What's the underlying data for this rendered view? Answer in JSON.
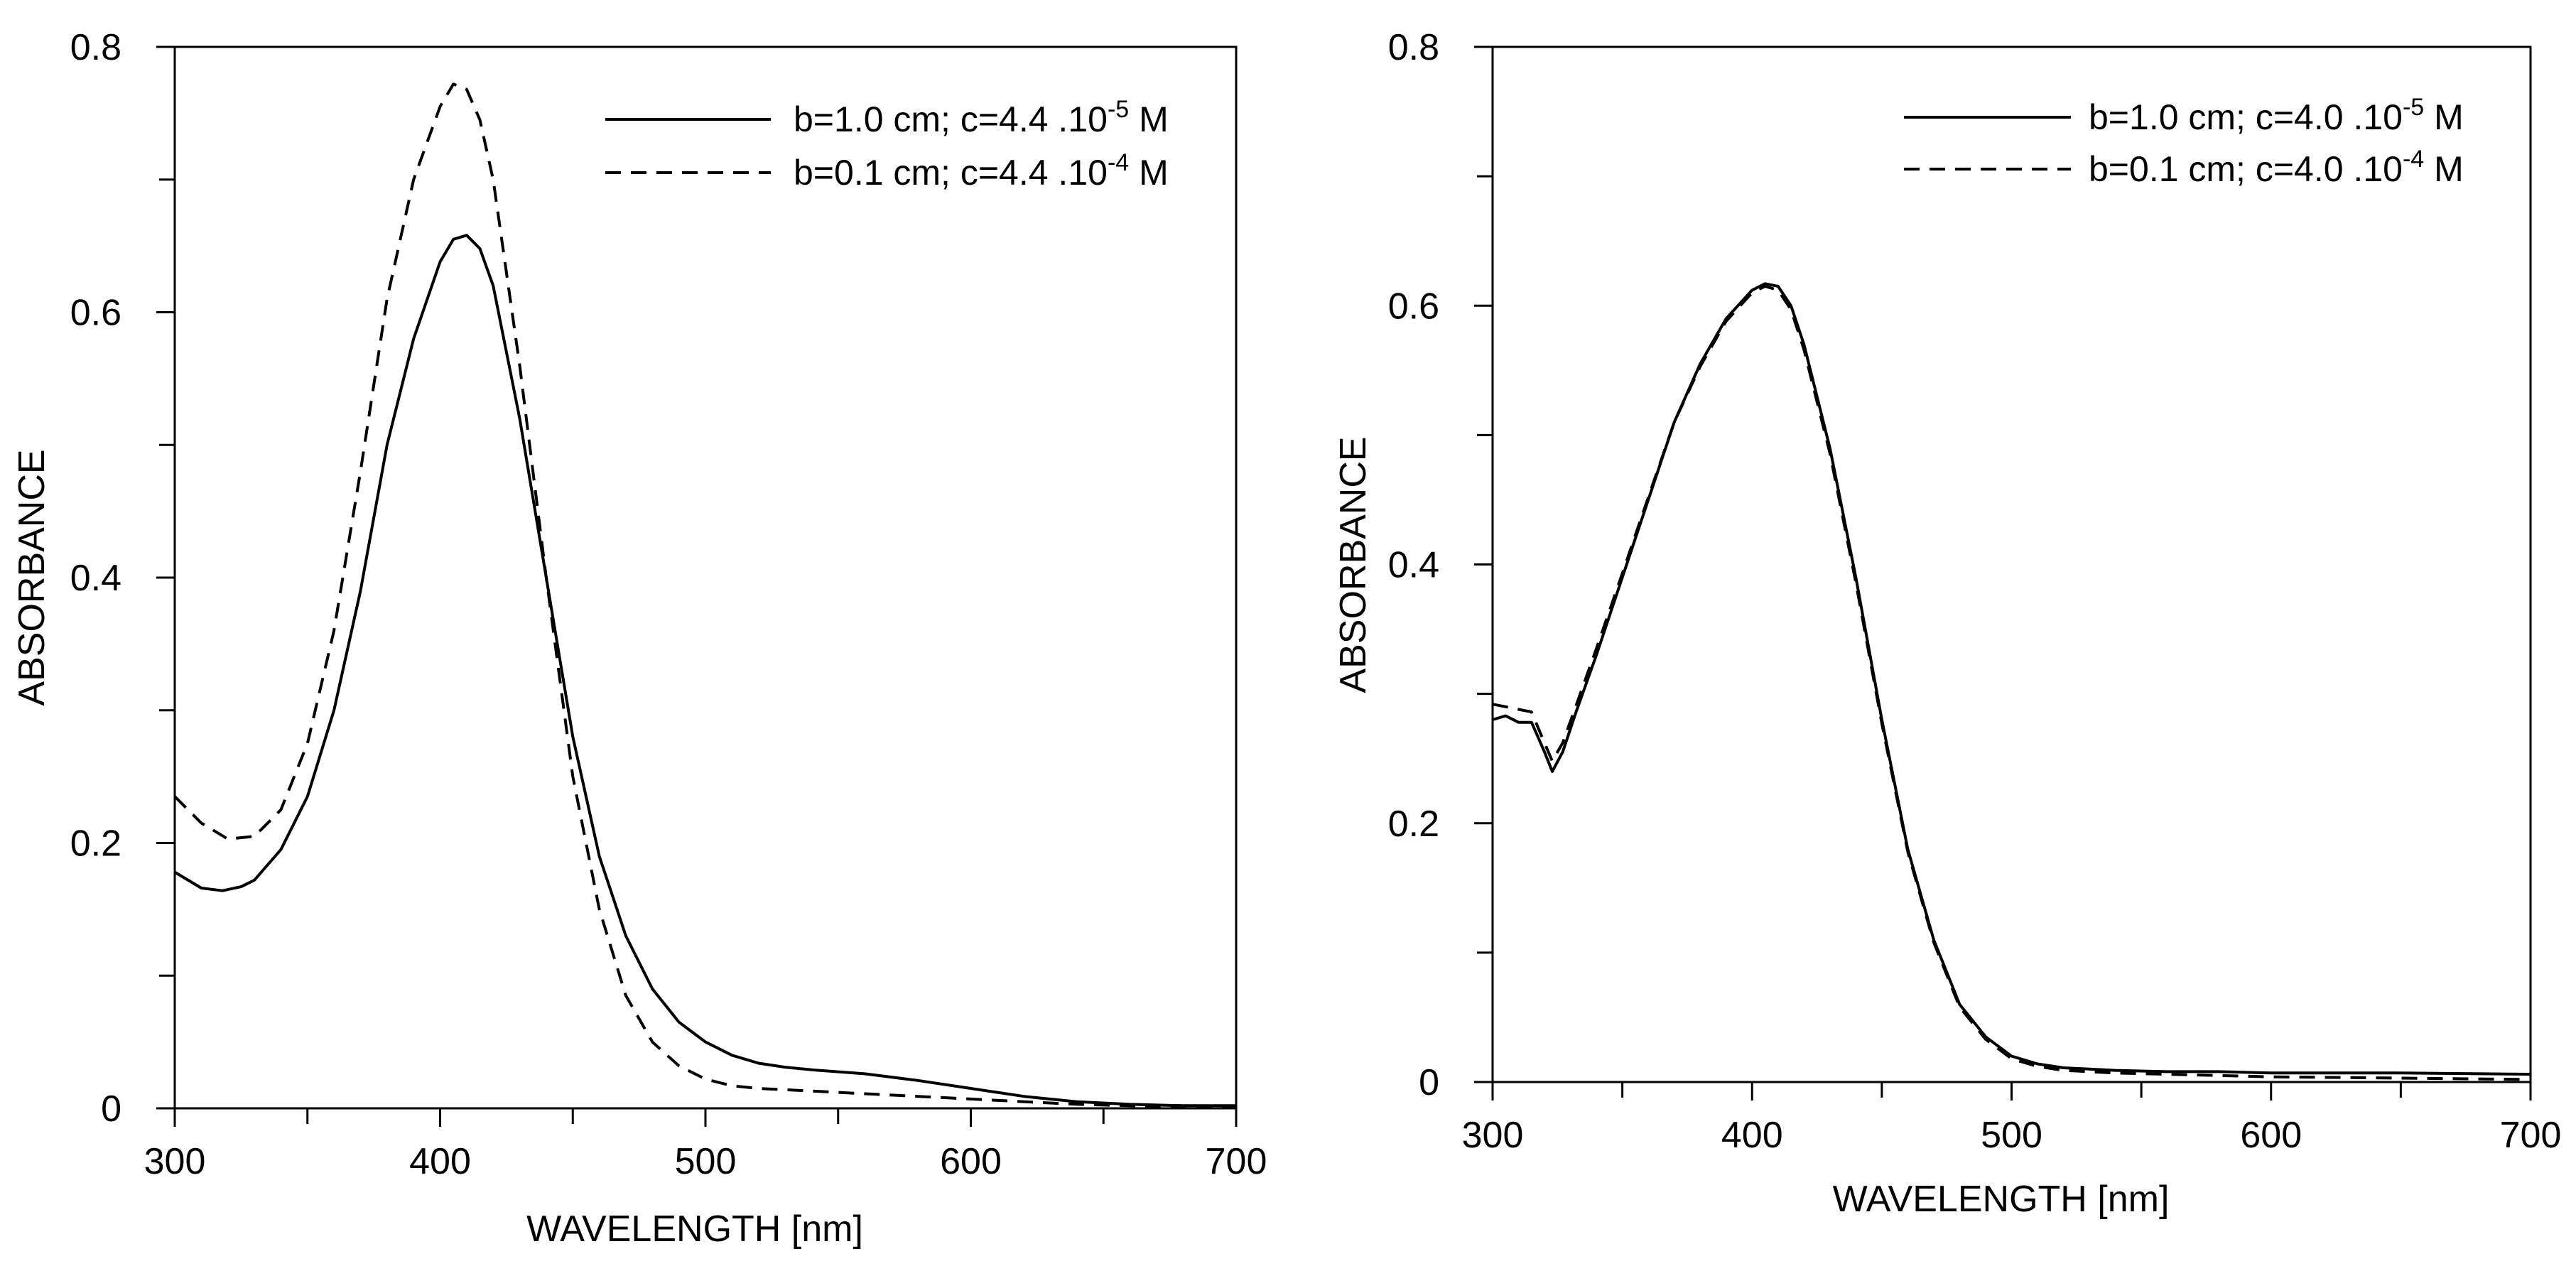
{
  "chart_data": [
    {
      "type": "line",
      "xlabel": "WAVELENGTH [nm]",
      "ylabel": "ABSORBANCE",
      "xlim": [
        300,
        700
      ],
      "ylim": [
        0,
        0.8
      ],
      "xticks": [
        300,
        400,
        500,
        600,
        700
      ],
      "xtick_labels": [
        "300",
        "400",
        "500",
        "600",
        "700"
      ],
      "yticks": [
        0,
        0.2,
        0.4,
        0.6,
        0.8
      ],
      "ytick_labels": [
        "0",
        "0.2",
        "0.4",
        "0.6",
        "0.8"
      ],
      "grid": false,
      "legend_position": "top-right",
      "series": [
        {
          "name": "b=1.0 cm; c=4.4 .10-5 M",
          "legend": {
            "prefix": "b=1.0 cm; c=4.4 .10",
            "exponent": "-5",
            "suffix": " M"
          },
          "style": "solid",
          "x": [
            300,
            310,
            318,
            325,
            330,
            340,
            350,
            360,
            370,
            380,
            390,
            400,
            405,
            410,
            415,
            420,
            430,
            440,
            450,
            460,
            470,
            480,
            490,
            500,
            510,
            520,
            530,
            540,
            560,
            580,
            600,
            620,
            640,
            660,
            680,
            700
          ],
          "y": [
            0.178,
            0.166,
            0.164,
            0.167,
            0.172,
            0.195,
            0.235,
            0.3,
            0.39,
            0.5,
            0.58,
            0.638,
            0.655,
            0.658,
            0.648,
            0.62,
            0.52,
            0.4,
            0.28,
            0.19,
            0.13,
            0.09,
            0.065,
            0.05,
            0.04,
            0.034,
            0.031,
            0.029,
            0.026,
            0.021,
            0.015,
            0.009,
            0.005,
            0.003,
            0.002,
            0.002
          ]
        },
        {
          "name": "b=0.1 cm; c=4.4 .10-4 M",
          "legend": {
            "prefix": "b=0.1 cm; c=4.4 .10",
            "exponent": "-4",
            "suffix": " M"
          },
          "style": "dashed",
          "x": [
            300,
            310,
            320,
            330,
            340,
            350,
            360,
            370,
            380,
            390,
            400,
            405,
            410,
            415,
            420,
            430,
            440,
            450,
            460,
            470,
            480,
            490,
            500,
            510,
            520,
            540,
            560,
            580,
            600,
            620,
            640,
            660,
            680,
            700
          ],
          "y": [
            0.235,
            0.215,
            0.203,
            0.205,
            0.225,
            0.275,
            0.36,
            0.48,
            0.61,
            0.7,
            0.755,
            0.772,
            0.768,
            0.745,
            0.7,
            0.56,
            0.4,
            0.25,
            0.15,
            0.085,
            0.05,
            0.032,
            0.022,
            0.017,
            0.015,
            0.013,
            0.011,
            0.009,
            0.007,
            0.005,
            0.003,
            0.002,
            0.001,
            0.001
          ]
        }
      ]
    },
    {
      "type": "line",
      "xlabel": "WAVELENGTH [nm]",
      "ylabel": "ABSORBANCE",
      "xlim": [
        300,
        700
      ],
      "ylim": [
        0,
        0.8
      ],
      "xticks": [
        300,
        400,
        500,
        600,
        700
      ],
      "xtick_labels": [
        "300",
        "400",
        "500",
        "600",
        "700"
      ],
      "yticks": [
        0,
        0.2,
        0.4,
        0.6,
        0.8
      ],
      "ytick_labels": [
        "0",
        "0.2",
        "0.4",
        "0.6",
        "0.8"
      ],
      "grid": false,
      "legend_position": "top-right",
      "series": [
        {
          "name": "b=1.0 cm; c=4.0 .10-5 M",
          "legend": {
            "prefix": "b=1.0 cm; c=4.0 .10",
            "exponent": "-5",
            "suffix": " M"
          },
          "style": "solid",
          "x": [
            300,
            305,
            310,
            315,
            320,
            323,
            327,
            332,
            340,
            350,
            360,
            370,
            380,
            390,
            400,
            405,
            410,
            415,
            420,
            430,
            440,
            450,
            460,
            470,
            480,
            490,
            500,
            510,
            520,
            540,
            560,
            580,
            600,
            650,
            700
          ],
          "y": [
            0.28,
            0.283,
            0.278,
            0.278,
            0.255,
            0.24,
            0.255,
            0.285,
            0.33,
            0.39,
            0.45,
            0.51,
            0.555,
            0.59,
            0.612,
            0.617,
            0.615,
            0.6,
            0.57,
            0.49,
            0.39,
            0.28,
            0.18,
            0.11,
            0.06,
            0.035,
            0.02,
            0.014,
            0.011,
            0.009,
            0.008,
            0.008,
            0.007,
            0.007,
            0.006
          ]
        },
        {
          "name": "b=0.1 cm; c=4.0 .10-4 M",
          "legend": {
            "prefix": "b=0.1 cm; c=4.0 .10",
            "exponent": "-4",
            "suffix": " M"
          },
          "style": "dashed",
          "x": [
            300,
            305,
            310,
            315,
            320,
            323,
            327,
            332,
            340,
            350,
            360,
            370,
            380,
            390,
            400,
            405,
            410,
            415,
            420,
            430,
            440,
            450,
            460,
            470,
            480,
            490,
            500,
            510,
            520,
            540,
            560,
            580,
            600,
            650,
            700
          ],
          "y": [
            0.292,
            0.29,
            0.288,
            0.286,
            0.262,
            0.248,
            0.262,
            0.29,
            0.335,
            0.393,
            0.452,
            0.51,
            0.553,
            0.588,
            0.61,
            0.615,
            0.612,
            0.597,
            0.566,
            0.486,
            0.386,
            0.277,
            0.178,
            0.108,
            0.058,
            0.033,
            0.018,
            0.012,
            0.009,
            0.007,
            0.006,
            0.005,
            0.004,
            0.003,
            0.002
          ]
        }
      ]
    }
  ]
}
